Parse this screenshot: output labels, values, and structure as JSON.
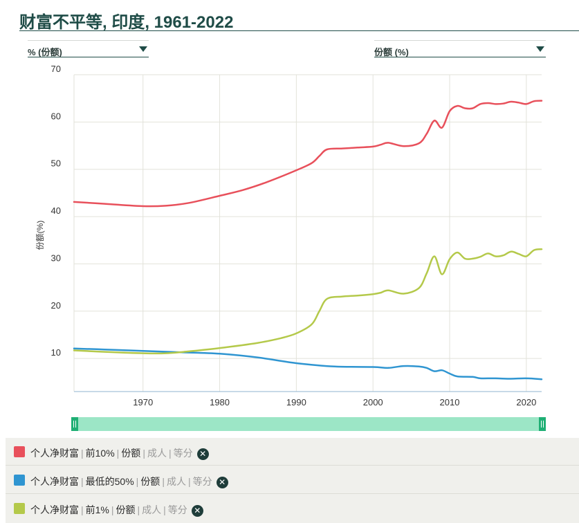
{
  "title": "财富不平等, 印度, 1961-2022",
  "controls": {
    "left_select": "% (份额)",
    "right_select": "份额 (%)"
  },
  "colors": {
    "top10": "#e8505b",
    "bottom50": "#2f95d1",
    "top1": "#b4c94a",
    "grid": "#e2e2da",
    "axis": "#8fb3cf",
    "slider": "#9ce6c6",
    "handle": "#1faf74"
  },
  "legend": [
    {
      "metric": "个人净财富",
      "group": "前10%",
      "measure": "份额",
      "pop": "成人",
      "method": "等分",
      "color_key": "top10"
    },
    {
      "metric": "个人净财富",
      "group": "最低的50%",
      "measure": "份额",
      "pop": "成人",
      "method": "等分",
      "color_key": "bottom50"
    },
    {
      "metric": "个人净财富",
      "group": "前1%",
      "measure": "份额",
      "pop": "成人",
      "method": "等分",
      "color_key": "top1"
    }
  ],
  "chart_data": {
    "type": "line",
    "title": "",
    "xlabel": "",
    "ylabel": "份额(%)",
    "xlim": [
      1961,
      2022
    ],
    "ylim": [
      3,
      70
    ],
    "x_ticks": [
      1970,
      1980,
      1990,
      2000,
      2010,
      2020
    ],
    "y_ticks": [
      10,
      20,
      30,
      40,
      50,
      60,
      70
    ],
    "grid": true,
    "legend_position": "bottom",
    "series": [
      {
        "color_key": "top10",
        "points": [
          [
            1961,
            43.1
          ],
          [
            1965,
            42.7
          ],
          [
            1970,
            42.2
          ],
          [
            1973,
            42.3
          ],
          [
            1976,
            42.9
          ],
          [
            1980,
            44.4
          ],
          [
            1983,
            45.6
          ],
          [
            1986,
            47.2
          ],
          [
            1990,
            49.8
          ],
          [
            1992,
            51.3
          ],
          [
            1993,
            52.8
          ],
          [
            1994,
            54.2
          ],
          [
            1996,
            54.4
          ],
          [
            1998,
            54.6
          ],
          [
            2000,
            54.8
          ],
          [
            2001,
            55.2
          ],
          [
            2002,
            55.6
          ],
          [
            2004,
            54.9
          ],
          [
            2006,
            55.5
          ],
          [
            2007,
            57.5
          ],
          [
            2008,
            60.3
          ],
          [
            2009,
            58.8
          ],
          [
            2010,
            62.3
          ],
          [
            2011,
            63.4
          ],
          [
            2012,
            62.9
          ],
          [
            2013,
            62.9
          ],
          [
            2014,
            63.8
          ],
          [
            2015,
            64.0
          ],
          [
            2016,
            63.8
          ],
          [
            2017,
            63.9
          ],
          [
            2018,
            64.3
          ],
          [
            2019,
            64.1
          ],
          [
            2020,
            63.8
          ],
          [
            2021,
            64.4
          ],
          [
            2022,
            64.5
          ]
        ]
      },
      {
        "color_key": "bottom50",
        "points": [
          [
            1961,
            12.1
          ],
          [
            1965,
            11.9
          ],
          [
            1970,
            11.6
          ],
          [
            1975,
            11.3
          ],
          [
            1980,
            11.0
          ],
          [
            1985,
            10.2
          ],
          [
            1990,
            9.0
          ],
          [
            1995,
            8.3
          ],
          [
            2000,
            8.2
          ],
          [
            2002,
            8.0
          ],
          [
            2004,
            8.4
          ],
          [
            2006,
            8.3
          ],
          [
            2007,
            8.0
          ],
          [
            2008,
            7.3
          ],
          [
            2009,
            7.5
          ],
          [
            2010,
            6.8
          ],
          [
            2011,
            6.2
          ],
          [
            2013,
            6.1
          ],
          [
            2014,
            5.8
          ],
          [
            2016,
            5.8
          ],
          [
            2018,
            5.7
          ],
          [
            2020,
            5.8
          ],
          [
            2022,
            5.6
          ]
        ]
      },
      {
        "color_key": "top1",
        "points": [
          [
            1961,
            11.7
          ],
          [
            1965,
            11.4
          ],
          [
            1970,
            11.1
          ],
          [
            1973,
            11.1
          ],
          [
            1976,
            11.5
          ],
          [
            1980,
            12.2
          ],
          [
            1985,
            13.3
          ],
          [
            1988,
            14.3
          ],
          [
            1990,
            15.3
          ],
          [
            1992,
            17.2
          ],
          [
            1993,
            20.0
          ],
          [
            1994,
            22.6
          ],
          [
            1996,
            23.1
          ],
          [
            1998,
            23.3
          ],
          [
            2000,
            23.6
          ],
          [
            2001,
            23.9
          ],
          [
            2002,
            24.4
          ],
          [
            2004,
            23.7
          ],
          [
            2006,
            24.9
          ],
          [
            2007,
            28.0
          ],
          [
            2008,
            31.6
          ],
          [
            2009,
            27.8
          ],
          [
            2010,
            31.0
          ],
          [
            2011,
            32.4
          ],
          [
            2012,
            31.1
          ],
          [
            2013,
            31.1
          ],
          [
            2014,
            31.5
          ],
          [
            2015,
            32.2
          ],
          [
            2016,
            31.6
          ],
          [
            2017,
            31.8
          ],
          [
            2018,
            32.6
          ],
          [
            2019,
            32.1
          ],
          [
            2020,
            31.6
          ],
          [
            2021,
            32.9
          ],
          [
            2022,
            33.1
          ]
        ]
      }
    ]
  }
}
